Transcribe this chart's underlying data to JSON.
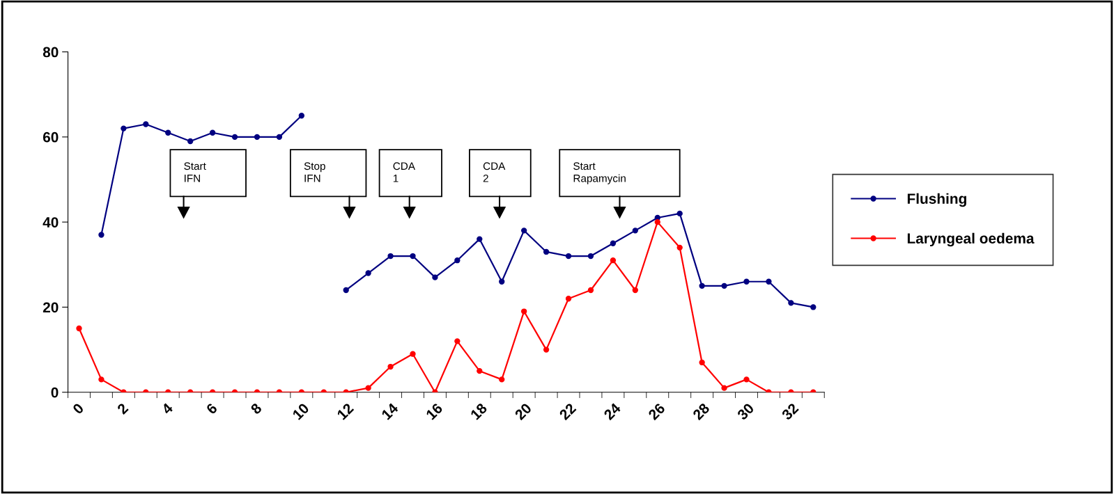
{
  "chart_data": {
    "type": "line",
    "categories": [
      "0",
      null,
      "2",
      null,
      "4",
      null,
      "6",
      null,
      "8",
      null,
      "10",
      null,
      "12",
      null,
      "14",
      null,
      "16",
      null,
      "18",
      null,
      "20",
      null,
      "22",
      null,
      "24",
      null,
      "26",
      null,
      "28",
      null,
      "30",
      null,
      "32",
      null
    ],
    "series": [
      {
        "name": "Flushing",
        "color": "#000080",
        "values": [
          null,
          37,
          62,
          63,
          61,
          59,
          61,
          60,
          60,
          60,
          65,
          null,
          24,
          28,
          32,
          32,
          27,
          31,
          36,
          26,
          38,
          33,
          32,
          32,
          35,
          38,
          41,
          42,
          25,
          25,
          26,
          26,
          21,
          20
        ]
      },
      {
        "name": "Laryngeal oedema",
        "color": "#ff0000",
        "values": [
          15,
          3,
          0,
          0,
          0,
          0,
          0,
          0,
          0,
          0,
          0,
          0,
          0,
          1,
          6,
          9,
          0,
          12,
          5,
          3,
          19,
          10,
          22,
          24,
          31,
          24,
          40,
          34,
          7,
          1,
          3,
          0,
          0,
          0
        ]
      }
    ],
    "ylim": [
      0,
      80
    ],
    "yticks": [
      0,
      20,
      40,
      60,
      80
    ],
    "grid": false,
    "legend": "right",
    "marker": "circle",
    "line_style": "solid",
    "annotations": [
      "Start\nIFN",
      "Stop\nIFN",
      "CDA\n1",
      "CDA\n2",
      "Start\nRapamycin"
    ]
  }
}
